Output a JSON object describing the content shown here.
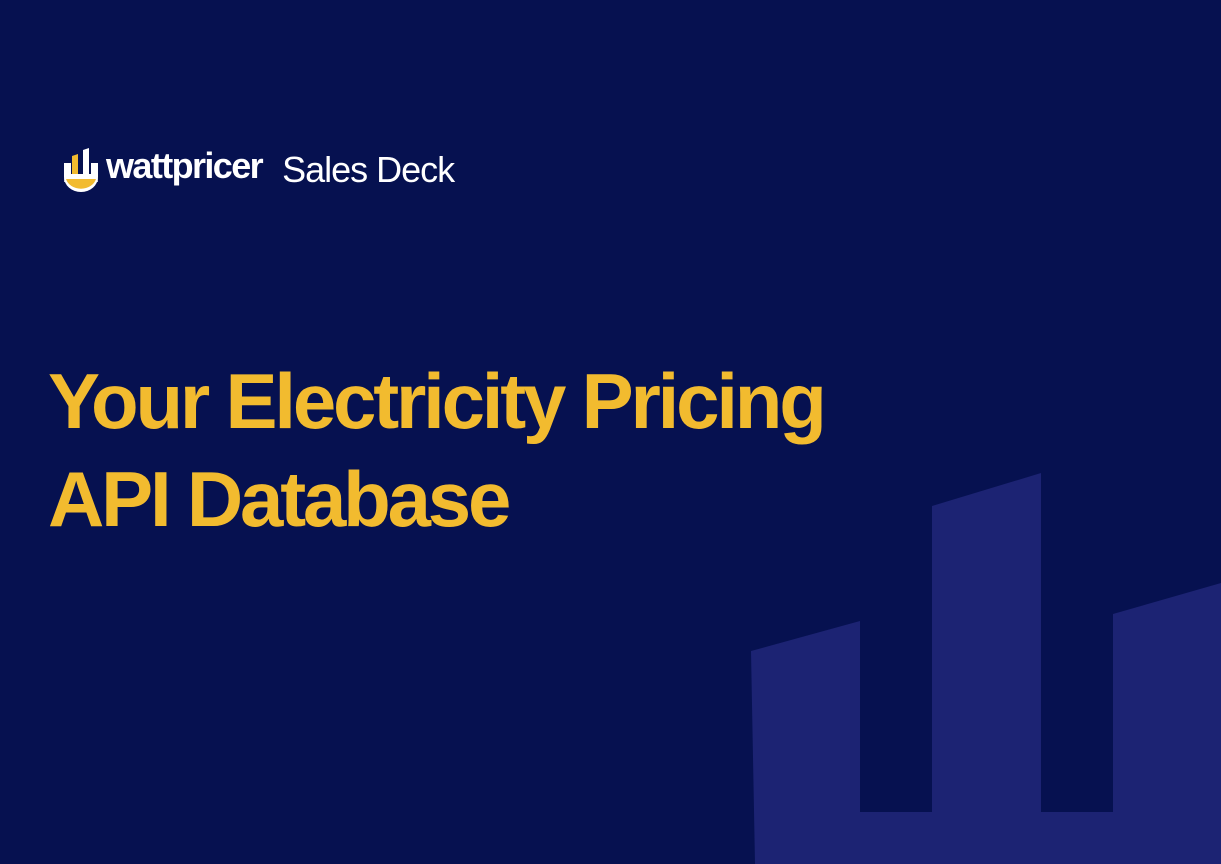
{
  "slide": {
    "brand_name": "wattpricer",
    "deck_label": "Sales Deck",
    "title_line_1": "Your Electricity Pricing",
    "title_line_2": "API Database"
  },
  "colors": {
    "background": "#061150",
    "title": "#f2bb2f",
    "text": "#ffffff",
    "logo_accent": "#f2bb2f",
    "decor_bars": "#1c2373"
  },
  "icons": {
    "logo": "wattpricer-logo-icon",
    "decoration": "bar-chart-decoration"
  }
}
